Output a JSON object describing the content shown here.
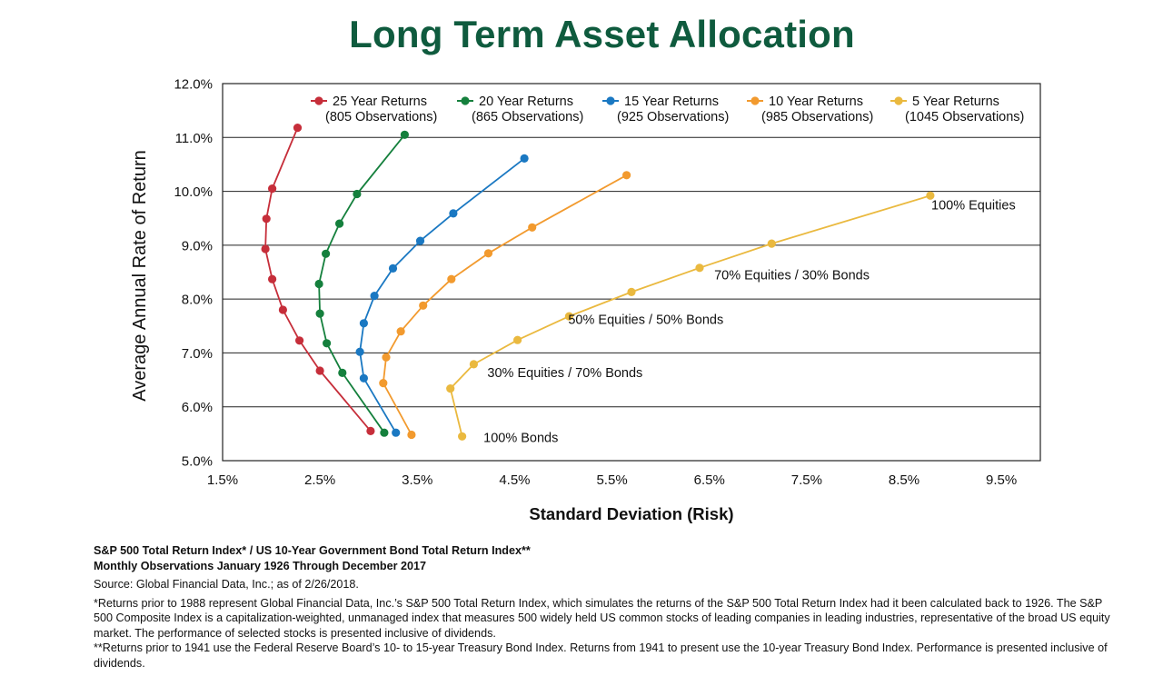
{
  "chart_data": {
    "type": "line",
    "title": "Long Term Asset Allocation",
    "xlabel": "Standard Deviation (Risk)",
    "ylabel": "Average Annual Rate of Return",
    "xlim": [
      1.5,
      9.9
    ],
    "ylim": [
      5.0,
      12.0
    ],
    "x_ticks": [
      "1.5%",
      "2.5%",
      "3.5%",
      "4.5%",
      "5.5%",
      "6.5%",
      "7.5%",
      "8.5%",
      "9.5%"
    ],
    "y_ticks": [
      "5.0%",
      "6.0%",
      "7.0%",
      "8.0%",
      "9.0%",
      "10.0%",
      "11.0%",
      "12.0%"
    ],
    "grid": "horizontal",
    "legend_placement": "top",
    "series": [
      {
        "name": "25 Year Returns",
        "note": "(805 Observations)",
        "color": "#c62e3a",
        "points": [
          [
            3.02,
            5.55
          ],
          [
            2.5,
            6.67
          ],
          [
            2.29,
            7.23
          ],
          [
            2.12,
            7.8
          ],
          [
            2.01,
            8.37
          ],
          [
            1.94,
            8.93
          ],
          [
            1.95,
            9.49
          ],
          [
            2.01,
            10.05
          ],
          [
            2.27,
            11.18
          ]
        ]
      },
      {
        "name": "20 Year Returns",
        "note": "(865 Observations)",
        "color": "#15803d",
        "points": [
          [
            3.16,
            5.52
          ],
          [
            2.73,
            6.63
          ],
          [
            2.57,
            7.18
          ],
          [
            2.5,
            7.73
          ],
          [
            2.49,
            8.28
          ],
          [
            2.56,
            8.84
          ],
          [
            2.7,
            9.4
          ],
          [
            2.88,
            9.95
          ],
          [
            3.37,
            11.05
          ]
        ]
      },
      {
        "name": "15 Year Returns",
        "note": "(925 Observations)",
        "color": "#1a78c2",
        "points": [
          [
            3.28,
            5.52
          ],
          [
            2.95,
            6.53
          ],
          [
            2.91,
            7.02
          ],
          [
            2.95,
            7.55
          ],
          [
            3.06,
            8.06
          ],
          [
            3.25,
            8.57
          ],
          [
            3.53,
            9.08
          ],
          [
            3.87,
            9.59
          ],
          [
            4.6,
            10.61
          ]
        ]
      },
      {
        "name": "10 Year Returns",
        "note": "(985 Observations)",
        "color": "#f29a2e",
        "points": [
          [
            3.44,
            5.48
          ],
          [
            3.15,
            6.44
          ],
          [
            3.18,
            6.92
          ],
          [
            3.33,
            7.4
          ],
          [
            3.56,
            7.88
          ],
          [
            3.85,
            8.37
          ],
          [
            4.23,
            8.85
          ],
          [
            4.68,
            9.33
          ],
          [
            5.65,
            10.3
          ]
        ]
      },
      {
        "name": "5 Year Returns",
        "note": "(1045 Observations)",
        "color": "#eab93f",
        "points": [
          [
            3.96,
            5.45
          ],
          [
            3.84,
            6.34
          ],
          [
            4.08,
            6.79
          ],
          [
            4.53,
            7.24
          ],
          [
            5.06,
            7.68
          ],
          [
            5.7,
            8.13
          ],
          [
            6.4,
            8.58
          ],
          [
            7.14,
            9.03
          ],
          [
            8.77,
            9.92
          ]
        ]
      }
    ],
    "annotations": [
      {
        "text": "100% Equities",
        "x": 8.78,
        "y": 9.75
      },
      {
        "text": "70% Equities / 30% Bonds",
        "x": 6.55,
        "y": 8.45
      },
      {
        "text": "50% Equities / 50% Bonds",
        "x": 5.05,
        "y": 7.62
      },
      {
        "text": "30% Equities / 70% Bonds",
        "x": 4.22,
        "y": 6.64
      },
      {
        "text": "100% Bonds",
        "x": 4.18,
        "y": 5.43
      }
    ]
  },
  "footnotes": {
    "line1": "S&P 500 Total Return Index* / US 10-Year Government Bond Total Return Index**",
    "line2": "Monthly Observations January 1926 Through December 2017",
    "source": "Source: Global Financial Data, Inc.; as of 2/26/2018.",
    "note1": "*Returns prior to 1988 represent Global Financial Data, Inc.’s S&P 500 Total Return Index, which simulates the returns of the S&P 500 Total Return Index had it been calculated back to 1926. The S&P 500 Composite Index is a capitalization-weighted, unmanaged index that measures 500 widely held US common stocks of leading companies in leading industries, representative of the broad US equity market. The performance of selected stocks is presented inclusive of dividends.",
    "note2": "**Returns prior to 1941 use the Federal Reserve Board’s 10- to 15-year Treasury Bond Index. Returns from 1941 to present use the 10-year Treasury Bond Index. Performance is presented inclusive of dividends."
  }
}
